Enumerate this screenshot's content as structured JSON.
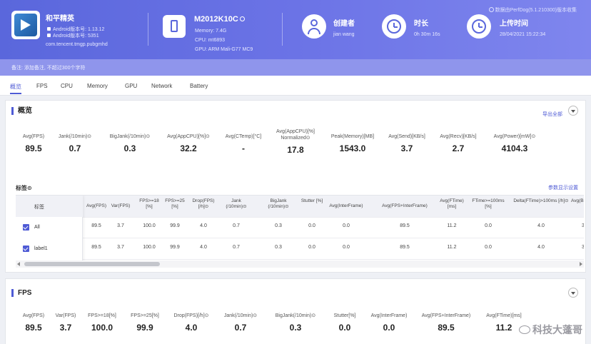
{
  "header": {
    "note": "数据由PerfDog(5.1.210300)版本收集",
    "app": {
      "name": "和平精英",
      "android_version": "Android版本号: 1.13.12",
      "android_build": "Android版本号: 5351",
      "package": "com.tencent.tmgp.pubgmhd"
    },
    "device": {
      "name": "M2012K10C",
      "memory": "Memory: 7.4G",
      "cpu": "CPU: mt6893",
      "gpu": "GPU: ARM Mali-G77 MC9"
    },
    "creator": {
      "title": "创建者",
      "value": "jian wang"
    },
    "duration": {
      "title": "时长",
      "value": "0h 30m 16s"
    },
    "upload": {
      "title": "上传时间",
      "value": "28/04/2021 15:22:34"
    },
    "remark": "备注: 添加备注, 不超过300个字符"
  },
  "tabs": [
    "概览",
    "FPS",
    "CPU",
    "Memory",
    "GPU",
    "Network",
    "Battery"
  ],
  "overview": {
    "title": "概览",
    "export": "导出全部",
    "stats": [
      {
        "label": "Avg(FPS)",
        "value": "89.5"
      },
      {
        "label": "Jank(/10min)⊙",
        "value": "0.7"
      },
      {
        "label": "BigJank(/10min)⊙",
        "value": "0.3"
      },
      {
        "label": "Avg(AppCPU)[%]⊙",
        "value": "32.2"
      },
      {
        "label": "Avg(CTemp)[°C]",
        "value": "-"
      },
      {
        "label": "Avg(AppCPU)[%] Normalized⊙",
        "value": "17.8"
      },
      {
        "label": "Peak(Memory)[MB]",
        "value": "1543.0"
      },
      {
        "label": "Avg(Send)[KB/s]",
        "value": "3.7"
      },
      {
        "label": "Avg(Recv)[KB/s]",
        "value": "2.7"
      },
      {
        "label": "Avg(Power)[mW]⊙",
        "value": "4104.3"
      }
    ],
    "labels_title": "标签⊙",
    "param_link": "参数显示设置",
    "table": {
      "fixed_header": "标签",
      "headers": [
        "Avg(FPS)",
        "Var(FPS)",
        "FPS>=18 [%]",
        "FPS>=25 [%]",
        "Drop(FPS) [/h]⊙",
        "Jank (/10min)⊙",
        "BigJank (/10min)⊙",
        "Stutter [%]",
        "Avg(InterFrame)",
        "Avg(FPS+InterFrame)",
        "Avg(FTime) [ms]",
        "FTime>=100ms [%]",
        "Delta(FTime)>100ms [/h]⊙",
        "Avg(Ba..."
      ],
      "rows": [
        {
          "label": "All",
          "cells": [
            "89.5",
            "3.7",
            "100.0",
            "99.9",
            "4.0",
            "0.7",
            "0.3",
            "0.0",
            "0.0",
            "89.5",
            "11.2",
            "0.0",
            "4.0",
            "3"
          ]
        },
        {
          "label": "label1",
          "cells": [
            "89.5",
            "3.7",
            "100.0",
            "99.9",
            "4.0",
            "0.7",
            "0.3",
            "0.0",
            "0.0",
            "89.5",
            "11.2",
            "0.0",
            "4.0",
            "3"
          ]
        }
      ]
    }
  },
  "fps": {
    "title": "FPS",
    "stats": [
      {
        "label": "Avg(FPS)",
        "value": "89.5"
      },
      {
        "label": "Var(FPS)",
        "value": "3.7"
      },
      {
        "label": "FPS>=18[%]",
        "value": "100.0"
      },
      {
        "label": "FPS>=25[%]",
        "value": "99.9"
      },
      {
        "label": "Drop(FPS)[/h]⊙",
        "value": "4.0"
      },
      {
        "label": "Jank(/10min)⊙",
        "value": "0.7"
      },
      {
        "label": "BigJank(/10min)⊙",
        "value": "0.3"
      },
      {
        "label": "Stutter[%]",
        "value": "0.0"
      },
      {
        "label": "Avg(InterFrame)",
        "value": "0.0"
      },
      {
        "label": "Avg(FPS+InterFrame)",
        "value": "89.5"
      },
      {
        "label": "Avg(FTime)[ms]",
        "value": "11.2"
      }
    ]
  },
  "watermark": "科技大蓬哥",
  "colors": {
    "accent": "#4f5bd5",
    "header_start": "#5a67dc",
    "header_end": "#7f86ee"
  }
}
